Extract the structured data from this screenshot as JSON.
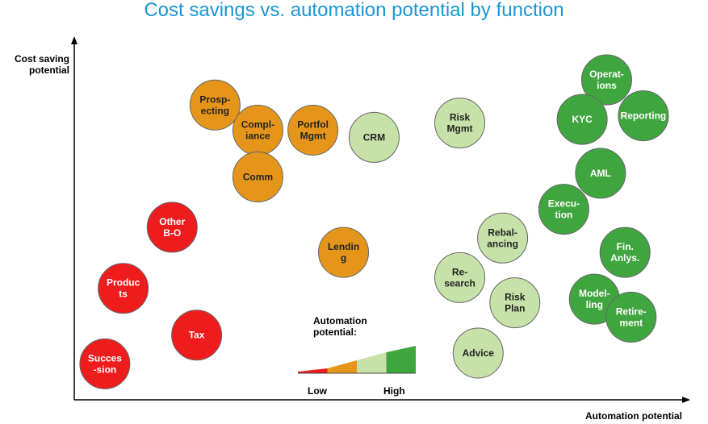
{
  "chart_data": {
    "type": "scatter",
    "title": "Cost savings vs. automation potential by function",
    "xlabel": "Automation potential",
    "ylabel": "Cost saving potential",
    "xlim": [
      0,
      100
    ],
    "ylim": [
      0,
      100
    ],
    "grid": false,
    "colors": {
      "very_low": "#ee1c1c",
      "low": "#e5961a",
      "medium": "#c6e2a8",
      "high": "#3fa63f"
    },
    "legend": {
      "title": "Automation potential:",
      "low_label": "Low",
      "high_label": "High",
      "levels": [
        "very_low",
        "low",
        "medium",
        "high"
      ]
    },
    "points": [
      {
        "label": [
          "Prosp-",
          "ecting"
        ],
        "x": 23,
        "y": 82,
        "level": "low"
      },
      {
        "label": [
          "Compl-",
          "iance"
        ],
        "x": 30,
        "y": 75,
        "level": "low"
      },
      {
        "label": [
          "Portfol",
          "Mgmt"
        ],
        "x": 39,
        "y": 75,
        "level": "low"
      },
      {
        "label": [
          "Comm"
        ],
        "x": 30,
        "y": 62,
        "level": "low"
      },
      {
        "label": [
          "Lendin",
          "g"
        ],
        "x": 44,
        "y": 41,
        "level": "low"
      },
      {
        "label": [
          "Other",
          "B-O"
        ],
        "x": 16,
        "y": 48,
        "level": "very_low"
      },
      {
        "label": [
          "Produc",
          "ts"
        ],
        "x": 8,
        "y": 31,
        "level": "very_low"
      },
      {
        "label": [
          "Tax"
        ],
        "x": 20,
        "y": 18,
        "level": "very_low"
      },
      {
        "label": [
          "Succes",
          "-sion"
        ],
        "x": 5,
        "y": 10,
        "level": "very_low"
      },
      {
        "label": [
          "CRM"
        ],
        "x": 49,
        "y": 73,
        "level": "medium"
      },
      {
        "label": [
          "Risk",
          "Mgmt"
        ],
        "x": 63,
        "y": 77,
        "level": "medium"
      },
      {
        "label": [
          "Rebal-",
          "ancing"
        ],
        "x": 70,
        "y": 45,
        "level": "medium"
      },
      {
        "label": [
          "Re-",
          "search"
        ],
        "x": 63,
        "y": 34,
        "level": "medium"
      },
      {
        "label": [
          "Risk",
          "Plan"
        ],
        "x": 72,
        "y": 27,
        "level": "medium"
      },
      {
        "label": [
          "Advice"
        ],
        "x": 66,
        "y": 13,
        "level": "medium"
      },
      {
        "label": [
          "Operat-",
          "ions"
        ],
        "x": 87,
        "y": 89,
        "level": "high"
      },
      {
        "label": [
          "KYC"
        ],
        "x": 83,
        "y": 78,
        "level": "high"
      },
      {
        "label": [
          "Reporting"
        ],
        "x": 93,
        "y": 79,
        "level": "high"
      },
      {
        "label": [
          "AML"
        ],
        "x": 86,
        "y": 63,
        "level": "high"
      },
      {
        "label": [
          "Execu-",
          "tion"
        ],
        "x": 80,
        "y": 53,
        "level": "high"
      },
      {
        "label": [
          "Fin.",
          "Anlys."
        ],
        "x": 90,
        "y": 41,
        "level": "high"
      },
      {
        "label": [
          "Model-",
          "ling"
        ],
        "x": 85,
        "y": 28,
        "level": "high"
      },
      {
        "label": [
          "Retire-",
          "ment"
        ],
        "x": 91,
        "y": 23,
        "level": "high"
      }
    ]
  }
}
